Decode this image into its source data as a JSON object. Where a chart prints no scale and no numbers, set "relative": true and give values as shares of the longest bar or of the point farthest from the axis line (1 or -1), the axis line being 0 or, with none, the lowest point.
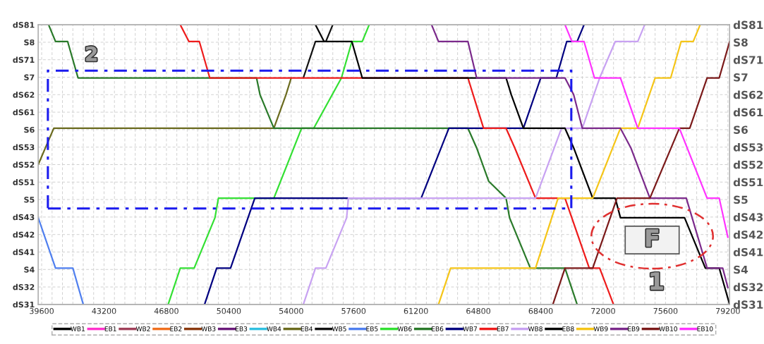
{
  "chart_data": {
    "type": "line",
    "xlim": [
      39400,
      79300
    ],
    "xticks": [
      39600,
      {
        "value": 40200,
        "label": null
      },
      {
        "value": 40800,
        "label": null
      },
      {
        "value": 41400,
        "label": null
      },
      {
        "value": 42000,
        "label": null
      },
      {
        "value": 42600,
        "label": null
      },
      43200,
      {
        "value": 43800,
        "label": null
      },
      {
        "value": 44400,
        "label": null
      },
      {
        "value": 45000,
        "label": null
      },
      {
        "value": 45600,
        "label": null
      },
      {
        "value": 46200,
        "label": null
      },
      46800,
      {
        "value": 47400,
        "label": null
      },
      {
        "value": 48000,
        "label": null
      },
      {
        "value": 48600,
        "label": null
      },
      {
        "value": 49200,
        "label": null
      },
      {
        "value": 49800,
        "label": null
      },
      50400,
      {
        "value": 51000,
        "label": null
      },
      {
        "value": 51600,
        "label": null
      },
      {
        "value": 52200,
        "label": null
      },
      {
        "value": 52800,
        "label": null
      },
      {
        "value": 53400,
        "label": null
      },
      54000,
      {
        "value": 54600,
        "label": null
      },
      {
        "value": 55200,
        "label": null
      },
      {
        "value": 55800,
        "label": null
      },
      {
        "value": 56400,
        "label": null
      },
      {
        "value": 57000,
        "label": null
      },
      57600,
      {
        "value": 58200,
        "label": null
      },
      {
        "value": 58800,
        "label": null
      },
      {
        "value": 59400,
        "label": null
      },
      {
        "value": 60000,
        "label": null
      },
      {
        "value": 60600,
        "label": null
      },
      61200,
      {
        "value": 61800,
        "label": null
      },
      {
        "value": 62400,
        "label": null
      },
      {
        "value": 63000,
        "label": null
      },
      {
        "value": 63600,
        "label": null
      },
      {
        "value": 64200,
        "label": null
      },
      64800,
      {
        "value": 65400,
        "label": null
      },
      {
        "value": 66000,
        "label": null
      },
      {
        "value": 66600,
        "label": null
      },
      {
        "value": 67200,
        "label": null
      },
      {
        "value": 67800,
        "label": null
      },
      68400,
      {
        "value": 69000,
        "label": null
      },
      {
        "value": 69600,
        "label": null
      },
      {
        "value": 70200,
        "label": null
      },
      {
        "value": 70800,
        "label": null
      },
      {
        "value": 71400,
        "label": null
      },
      72000,
      {
        "value": 72600,
        "label": null
      },
      {
        "value": 73200,
        "label": null
      },
      {
        "value": 73800,
        "label": null
      },
      {
        "value": 74400,
        "label": null
      },
      {
        "value": 75000,
        "label": null
      },
      75600,
      {
        "value": 76200,
        "label": null
      },
      {
        "value": 76800,
        "label": null
      },
      {
        "value": 77400,
        "label": null
      },
      {
        "value": 78000,
        "label": null
      },
      {
        "value": 78600,
        "label": null
      },
      79200
    ],
    "y_categories": [
      "dS81",
      "S8",
      "dS71",
      "S7",
      "dS62",
      "dS61",
      "S6",
      "dS53",
      "dS52",
      "dS51",
      "S5",
      "dS43",
      "dS42",
      "dS41",
      "S4",
      "dS32",
      "dS31"
    ],
    "y2_categories": [
      "dS81",
      "S8",
      "dS71",
      "S7",
      "dS62",
      "dS61",
      "S6",
      "dS53",
      "dS52",
      "dS51",
      "S5",
      "dS43",
      "dS42",
      "dS41",
      "S4",
      "dS32",
      "dS31"
    ],
    "relative": true,
    "grid": true,
    "legend": "bottom",
    "marker": "none",
    "line_style": "solid",
    "annotations": [
      "2",
      "1",
      "F"
    ],
    "series": [
      {
        "name": "WB1",
        "color": "#000000"
      },
      {
        "name": "EB1",
        "color": "#ff33cc"
      },
      {
        "name": "WB2",
        "color": "#a0405a"
      },
      {
        "name": "EB2",
        "color": "#f07020"
      },
      {
        "name": "WB3",
        "color": "#8b3a10"
      },
      {
        "name": "EB3",
        "color": "#6a1a7a"
      },
      {
        "name": "WB4",
        "color": "#30c0e0"
      },
      {
        "name": "EB4",
        "color": "#6b6b1f",
        "x": [
          39400,
          40300,
          53000,
          53700,
          54000
        ],
        "values": [
          0.5,
          0.63,
          0.63,
          0.75,
          0.81
        ]
      },
      {
        "name": "WB5",
        "color": "#111111",
        "x": [
          54700,
          55400,
          56000,
          56400
        ],
        "values": [
          0.81,
          0.94,
          0.94,
          1
        ]
      },
      {
        "name": "EB5",
        "color": "#4f7fef",
        "x": [
          39400,
          40400,
          41400,
          42000
        ],
        "values": [
          0.31,
          0.13,
          0.13,
          0
        ]
      },
      {
        "name": "WB6",
        "color": "#33e033",
        "x": [
          46900,
          47600,
          48400,
          49600,
          49800,
          53000,
          54600,
          55300,
          56900,
          57500,
          58100,
          58500
        ],
        "values": [
          0,
          0.13,
          0.13,
          0.31,
          0.38,
          0.38,
          0.63,
          0.63,
          0.81,
          0.94,
          0.94,
          1
        ]
      },
      {
        "name": "EB6",
        "color": "#2a7a2a",
        "x": [
          40000,
          40400,
          41100,
          41700,
          52000,
          52200,
          53000,
          64200,
          64700,
          65400,
          66400,
          66600,
          67800,
          69800,
          70500
        ],
        "values": [
          1,
          0.94,
          0.94,
          0.81,
          0.81,
          0.75,
          0.63,
          0.63,
          0.56,
          0.44,
          0.38,
          0.31,
          0.13,
          0.13,
          0
        ]
      },
      {
        "name": "WB7",
        "color": "#000080",
        "x": [
          49000,
          49700,
          50500,
          51900,
          61500,
          63100,
          67400,
          68400,
          69300,
          69900,
          70500,
          70900
        ],
        "values": [
          0,
          0.13,
          0.13,
          0.38,
          0.38,
          0.63,
          0.63,
          0.81,
          0.81,
          0.94,
          0.94,
          1
        ]
      },
      {
        "name": "EB7",
        "color": "#ee1c1c",
        "x": [
          47600,
          48100,
          48700,
          49300,
          64200,
          64500,
          65100,
          66400,
          66900,
          68100,
          69800,
          71200,
          71800,
          72600
        ],
        "values": [
          1,
          0.94,
          0.94,
          0.81,
          0.81,
          0.75,
          0.63,
          0.63,
          0.56,
          0.38,
          0.38,
          0.13,
          0.13,
          0
        ]
      },
      {
        "name": "WB8",
        "color": "#c8a2f2",
        "x": [
          54700,
          55400,
          56000,
          57200,
          57300,
          68100,
          69600,
          70800,
          71800,
          72700,
          74000,
          74400
        ],
        "values": [
          0,
          0.13,
          0.13,
          0.31,
          0.38,
          0.38,
          0.63,
          0.63,
          0.81,
          0.94,
          0.94,
          1
        ]
      },
      {
        "name": "EB8",
        "color": "#000000",
        "x": [
          55400,
          55900,
          57500,
          58100,
          66400,
          66700,
          67400,
          69800,
          70300,
          71400,
          72700,
          73000,
          76700,
          77900,
          78700,
          79300
        ],
        "values": [
          1,
          0.94,
          0.94,
          0.81,
          0.81,
          0.75,
          0.63,
          0.63,
          0.56,
          0.38,
          0.38,
          0.31,
          0.31,
          0.13,
          0.13,
          0
        ]
      },
      {
        "name": "WB9",
        "color": "#f5c518",
        "x": [
          62500,
          63200,
          68100,
          69400,
          71400,
          73000,
          74000,
          75000,
          75900,
          76500,
          77200,
          77600
        ],
        "values": [
          0,
          0.13,
          0.13,
          0.38,
          0.38,
          0.63,
          0.63,
          0.81,
          0.81,
          0.94,
          0.94,
          1
        ]
      },
      {
        "name": "EB9",
        "color": "#7b2a8b",
        "x": [
          62100,
          62500,
          64200,
          64700,
          69800,
          70300,
          70800,
          73000,
          73600,
          74700,
          76800,
          78000,
          78900,
          79200
        ],
        "values": [
          1,
          0.94,
          0.94,
          0.81,
          0.81,
          0.75,
          0.63,
          0.63,
          0.56,
          0.38,
          0.38,
          0.13,
          0.13,
          0.06
        ]
      },
      {
        "name": "WB10",
        "color": "#7b1a1a",
        "x": [
          69100,
          69800,
          71400,
          72800,
          74700,
          76400,
          77000,
          78000,
          78700,
          79300
        ],
        "values": [
          0,
          0.13,
          0.13,
          0.38,
          0.38,
          0.63,
          0.63,
          0.81,
          0.81,
          0.94
        ]
      },
      {
        "name": "EB10",
        "color": "#ff33ff",
        "x": [
          69800,
          70200,
          70900,
          71500,
          73000,
          74000,
          76400,
          78000,
          78700,
          79200
        ],
        "values": [
          1,
          0.94,
          0.94,
          0.81,
          0.81,
          0.63,
          0.63,
          0.38,
          0.38,
          0.24
        ]
      }
    ]
  }
}
